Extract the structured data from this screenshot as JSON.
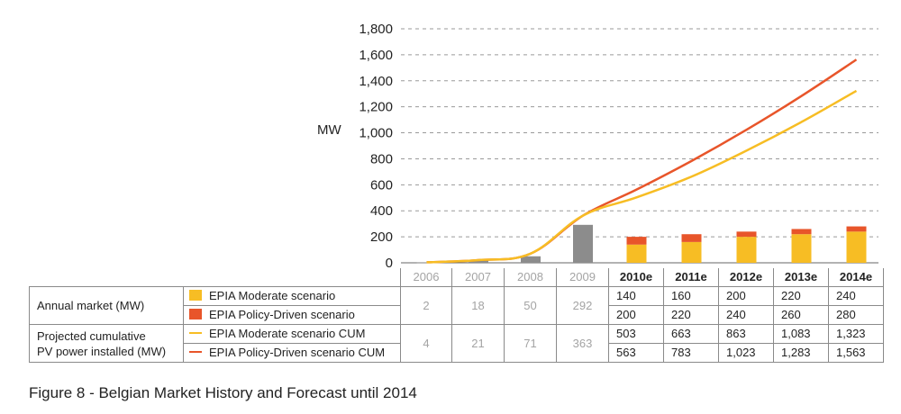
{
  "caption": "Figure 8 - Belgian Market History and Forecast until 2014",
  "colors": {
    "moderate": "#f7bd24",
    "policy": "#e8552a",
    "historic": "#8c8c8c",
    "grid": "#9a9a9a"
  },
  "table": {
    "years": [
      "2006",
      "2007",
      "2008",
      "2009",
      "2010e",
      "2011e",
      "2012e",
      "2013e",
      "2014e"
    ],
    "annual_label": "Annual market (MW)",
    "cumulative_label_1": "Projected cumulative",
    "cumulative_label_2": "PV power installed (MW)",
    "legend_moderate": "EPIA Moderate scenario",
    "legend_policy": "EPIA Policy-Driven scenario",
    "legend_moderate_cum": "EPIA Moderate scenario CUM",
    "legend_policy_cum": "EPIA Policy-Driven scenario CUM",
    "annual_hist": [
      "2",
      "18",
      "50",
      "292"
    ],
    "cum_hist": [
      "4",
      "21",
      "71",
      "363"
    ],
    "annual_moderate": [
      "140",
      "160",
      "200",
      "220",
      "240"
    ],
    "annual_policy": [
      "200",
      "220",
      "240",
      "260",
      "280"
    ],
    "cum_moderate": [
      "503",
      "663",
      "863",
      "1,083",
      "1,323"
    ],
    "cum_policy": [
      "563",
      "783",
      "1,023",
      "1,283",
      "1,563"
    ]
  },
  "chart_data": {
    "type": "bar",
    "ylabel": "MW",
    "ylim": [
      0,
      1800
    ],
    "yticks": [
      0,
      200,
      400,
      600,
      800,
      1000,
      1200,
      1400,
      1600,
      1800
    ],
    "ytick_labels": [
      "0",
      "200",
      "400",
      "600",
      "800",
      "1,000",
      "1,200",
      "1,400",
      "1,600",
      "1,800"
    ],
    "grid": true,
    "categories": [
      "2006",
      "2007",
      "2008",
      "2009",
      "2010e",
      "2011e",
      "2012e",
      "2013e",
      "2014e"
    ],
    "historic_annual": [
      2,
      18,
      50,
      292,
      null,
      null,
      null,
      null,
      null
    ],
    "series": [
      {
        "name": "EPIA Moderate scenario",
        "kind": "bar",
        "values": [
          null,
          null,
          null,
          null,
          140,
          160,
          200,
          220,
          240
        ]
      },
      {
        "name": "EPIA Policy-Driven scenario",
        "kind": "bar",
        "values": [
          null,
          null,
          null,
          null,
          200,
          220,
          240,
          260,
          280
        ]
      },
      {
        "name": "EPIA Moderate scenario CUM",
        "kind": "line",
        "values": [
          4,
          21,
          71,
          363,
          503,
          663,
          863,
          1083,
          1323
        ]
      },
      {
        "name": "EPIA Policy-Driven scenario CUM",
        "kind": "line",
        "values": [
          4,
          21,
          71,
          363,
          563,
          783,
          1023,
          1283,
          1563
        ]
      }
    ]
  }
}
